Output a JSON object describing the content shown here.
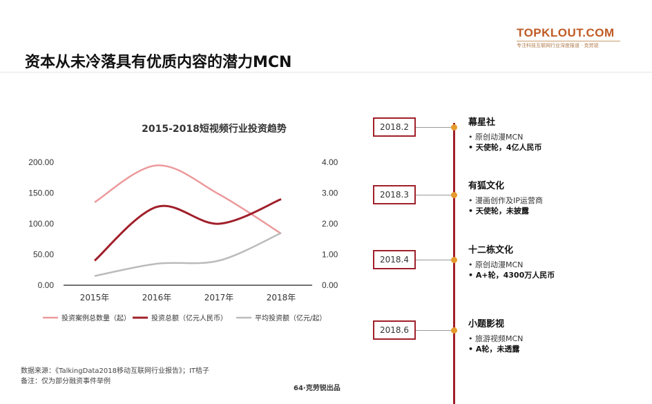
{
  "logo": {
    "main": "TOPKLOUT.COM",
    "sub": "专注科技互联网行业深度报道 · 克劳锐"
  },
  "page_title": "资本从未冷落具有优质内容的潜力MCN",
  "chart_data": {
    "type": "line",
    "title": "2015-2018短视频行业投资趋势",
    "categories": [
      "2015年",
      "2016年",
      "2017年",
      "2018年"
    ],
    "left_axis": {
      "ticks": [
        "0.00",
        "50.00",
        "100.00",
        "150.00",
        "200.00"
      ],
      "range": [
        0,
        200
      ]
    },
    "right_axis": {
      "ticks": [
        "0.00",
        "1.00",
        "2.00",
        "3.00",
        "4.00"
      ],
      "range": [
        0,
        4
      ]
    },
    "series": [
      {
        "name": "投资案例总数量（起）",
        "axis": "left",
        "values": [
          135,
          195,
          148,
          84
        ],
        "color": "#ec9a9c"
      },
      {
        "name": "投资总额（亿元人民币）",
        "axis": "right",
        "values": [
          0.8,
          2.55,
          2.0,
          2.8
        ],
        "color": "#a01f2a"
      },
      {
        "name": "平均投资额（亿元/起）",
        "axis": "right",
        "values": [
          0.3,
          0.7,
          0.8,
          1.7
        ],
        "color": "#bbbbbb"
      }
    ],
    "grid": false,
    "legend_position": "bottom"
  },
  "footnotes": {
    "source": "数据来源：《TalkingData2018移动互联网行业报告》；IT桔子",
    "note": "备注：仅为部分融资事件举例"
  },
  "page_number": "64·克劳锐出品",
  "timeline": [
    {
      "date": "2018.2",
      "name": "幕星社",
      "items": [
        {
          "text": "原创动漫MCN",
          "bold": false
        },
        {
          "text": "天使轮，4亿人民币",
          "bold": true
        }
      ]
    },
    {
      "date": "2018.3",
      "name": "有狐文化",
      "items": [
        {
          "text": "漫画创作及IP运营商",
          "bold": false
        },
        {
          "text": "天使轮，未披露",
          "bold": true
        }
      ]
    },
    {
      "date": "2018.4",
      "name": "十二栋文化",
      "items": [
        {
          "text": "原创动漫MCN",
          "bold": false
        },
        {
          "text": "A+轮，4300万人民币",
          "bold": true
        }
      ]
    },
    {
      "date": "2018.6",
      "name": "小题影视",
      "items": [
        {
          "text": "旅游视频MCN",
          "bold": false
        },
        {
          "text": "A轮，未透露",
          "bold": true
        }
      ]
    }
  ]
}
